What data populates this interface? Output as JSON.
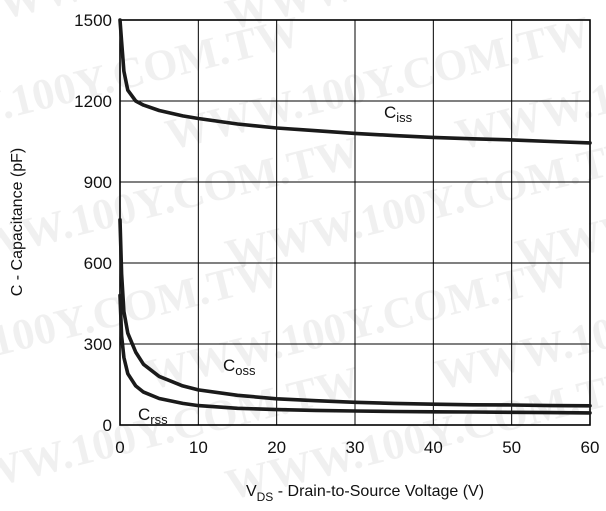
{
  "chart_data": {
    "type": "line",
    "title": "",
    "xlabel_prefix": "V",
    "xlabel_sub": "DS",
    "xlabel_rest": " - Drain-to-Source Voltage (V)",
    "ylabel": "C - Capacitance (pF)",
    "xlim": [
      0,
      60
    ],
    "ylim": [
      0,
      1500
    ],
    "x_ticks": [
      0,
      10,
      20,
      30,
      40,
      50,
      60
    ],
    "y_ticks": [
      0,
      300,
      600,
      900,
      1200,
      1500
    ],
    "grid": true,
    "series": [
      {
        "label_main": "C",
        "label_sub": "iss",
        "x": [
          0,
          0.2,
          0.5,
          1,
          2,
          3,
          5,
          8,
          10,
          15,
          20,
          25,
          30,
          35,
          40,
          45,
          50,
          55,
          60
        ],
        "y": [
          1500,
          1420,
          1310,
          1240,
          1200,
          1185,
          1165,
          1145,
          1135,
          1115,
          1100,
          1090,
          1080,
          1072,
          1065,
          1060,
          1056,
          1050,
          1045
        ]
      },
      {
        "label_main": "C",
        "label_sub": "oss",
        "x": [
          0,
          0.2,
          0.5,
          1,
          2,
          3,
          5,
          8,
          10,
          15,
          20,
          25,
          30,
          35,
          40,
          45,
          50,
          55,
          60
        ],
        "y": [
          760,
          560,
          420,
          340,
          270,
          225,
          180,
          145,
          130,
          110,
          97,
          90,
          84,
          80,
          77,
          75,
          74,
          72,
          71
        ]
      },
      {
        "label_main": "C",
        "label_sub": "rss",
        "x": [
          0,
          0.2,
          0.5,
          1,
          2,
          3,
          5,
          8,
          10,
          15,
          20,
          25,
          30,
          35,
          40,
          45,
          50,
          55,
          60
        ],
        "y": [
          480,
          330,
          250,
          190,
          145,
          122,
          98,
          80,
          72,
          62,
          57,
          54,
          52,
          50,
          49,
          48,
          47,
          46,
          45
        ]
      }
    ],
    "watermark": "WWW.100Y.COM.TW"
  }
}
